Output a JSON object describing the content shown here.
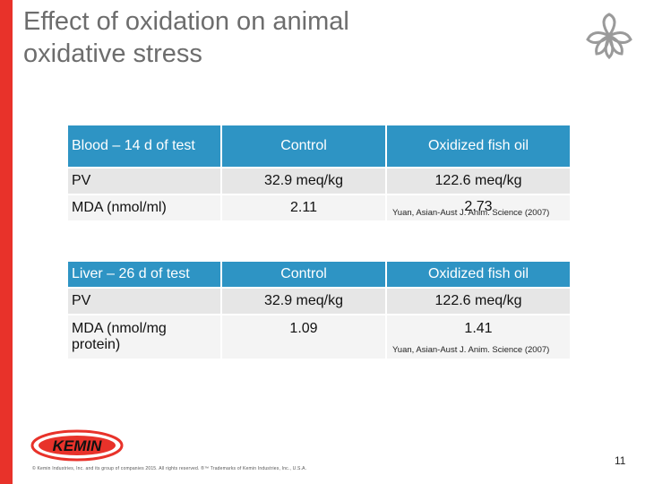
{
  "slide": {
    "title_line1": "Effect of oxidation on animal",
    "title_line2": "oxidative stress",
    "page_number": "11",
    "footer": "© Kemin Industries, Inc. and its group of companies 2015. All rights reserved. ®™ Trademarks of Kemin Industries, Inc., U.S.A.",
    "brand": "KEMIN"
  },
  "blood_table": {
    "header": [
      "Blood – 14 d of test",
      "Control",
      "Oxidized fish oil"
    ],
    "rows": [
      [
        "PV",
        "32.9 meq/kg",
        "122.6 meq/kg"
      ],
      [
        "MDA (nmol/ml)",
        "2.11",
        "2.73"
      ]
    ],
    "citation": "Yuan, Asian-Aust J. Anim. Science (2007)"
  },
  "liver_table": {
    "header": [
      "Liver – 26 d of test",
      "Control",
      "Oxidized fish oil"
    ],
    "rows": [
      [
        "PV",
        "32.9 meq/kg",
        "122.6 meq/kg"
      ],
      [
        "MDA (nmol/mg protein)",
        "1.09",
        "1.41"
      ]
    ],
    "citation": "Yuan, Asian-Aust J. Anim. Science (2007)"
  },
  "colors": {
    "accent_red": "#e8322a",
    "header_blue": "#2e94c4",
    "title_gray": "#6d6d6d"
  },
  "icons": [
    "leaf-logo-icon",
    "kemin-logo"
  ]
}
